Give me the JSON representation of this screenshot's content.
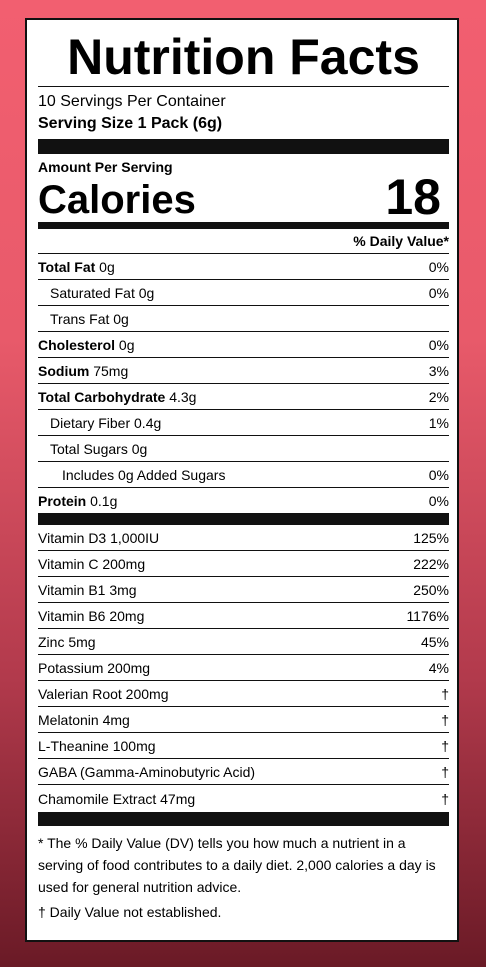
{
  "title": "Nutrition Facts",
  "servings_per_container": "10 Servings Per Container",
  "serving_size": "Serving Size 1 Pack (6g)",
  "amount_per_serving": "Amount Per Serving",
  "calories_label": "Calories",
  "calories_value": "18",
  "daily_value_header": "% Daily Value*",
  "nutrients": [
    {
      "name": "Total Fat",
      "amount": " 0g",
      "dv": "0%"
    },
    {
      "name": "Saturated Fat 0g",
      "dv": "0%"
    },
    {
      "name": "Trans Fat 0g",
      "dv": ""
    },
    {
      "name": "Cholesterol",
      "amount": " 0g",
      "dv": "0%"
    },
    {
      "name": "Sodium",
      "amount": " 75mg",
      "dv": "3%"
    },
    {
      "name": "Total Carbohydrate",
      "amount": " 4.3g",
      "dv": "2%"
    },
    {
      "name": "Dietary Fiber 0.4g",
      "dv": "1%"
    },
    {
      "name": "Total Sugars 0g",
      "dv": ""
    },
    {
      "name": "Includes 0g Added Sugars",
      "dv": "0%"
    },
    {
      "name": "Protein",
      "amount": " 0.1g",
      "dv": "0%"
    }
  ],
  "vitamins": [
    {
      "name": "Vitamin D3 1,000IU",
      "dv": "125%"
    },
    {
      "name": "Vitamin C 200mg",
      "dv": "222%"
    },
    {
      "name": "Vitamin B1 3mg",
      "dv": "250%"
    },
    {
      "name": "Vitamin B6 20mg",
      "dv": "1176%"
    },
    {
      "name": "Zinc 5mg",
      "dv": "45%"
    },
    {
      "name": "Potassium 200mg",
      "dv": "4%"
    },
    {
      "name": "Valerian Root 200mg",
      "dv": "†"
    },
    {
      "name": "Melatonin 4mg",
      "dv": "†"
    },
    {
      "name": "L-Theanine 100mg",
      "dv": "†"
    },
    {
      "name": "GABA (Gamma-Aminobutyric Acid)",
      "dv": "†"
    },
    {
      "name": "Chamomile Extract 47mg",
      "dv": "†"
    }
  ],
  "footnote_dv": "* The % Daily Value (DV) tells you how much a nutrient in a serving of food contributes to a daily diet. 2,000 calories a day is used for general nutrition advice.",
  "footnote_dagger": "† Daily Value not established."
}
